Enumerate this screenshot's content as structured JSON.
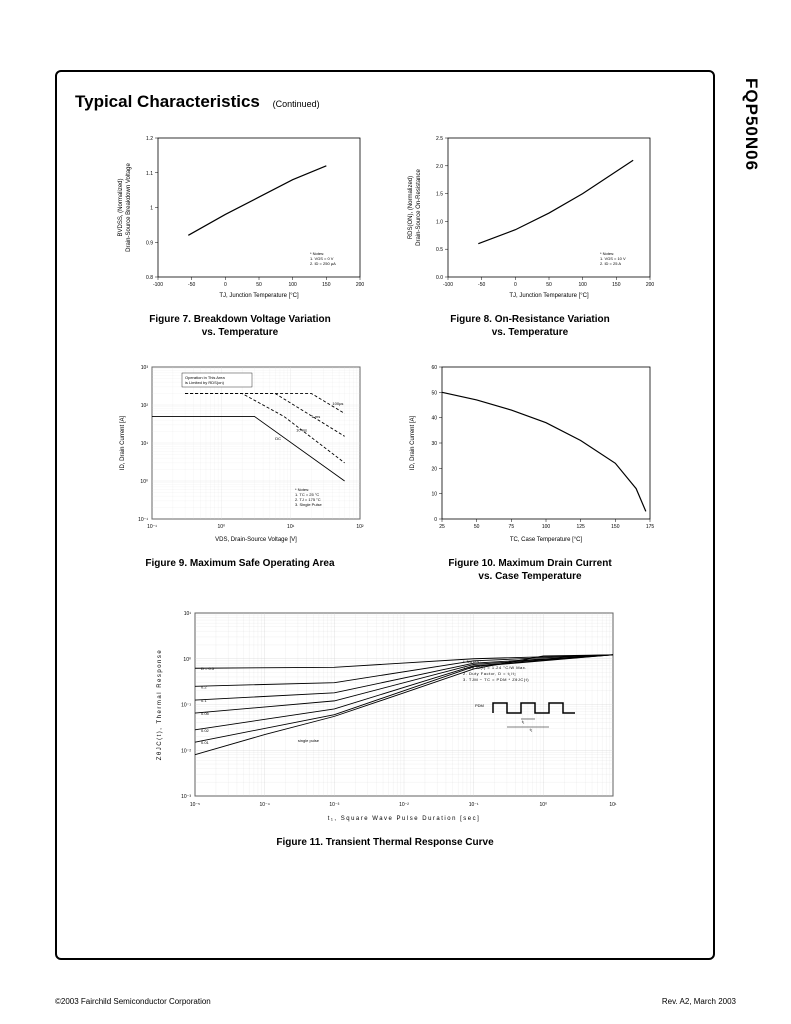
{
  "part_number": "FQP50N06",
  "section_title": "Typical Characteristics",
  "continued_label": "(Continued)",
  "footer_left": "©2003 Fairchild Semiconductor Corporation",
  "footer_right": "Rev. A2, March 2003",
  "fig7": {
    "type": "line",
    "title": "Figure 7. Breakdown Voltage Variation",
    "subtitle": "vs. Temperature",
    "xlabel": "TJ, Junction Temperature [°C]",
    "ylabel": "BVDSS, (Normalized)\nDrain-Source Breakdown Voltage",
    "xlim": [
      -100,
      200
    ],
    "ylim": [
      0.8,
      1.2
    ],
    "xticks": [
      -100,
      -50,
      0,
      50,
      100,
      150,
      200
    ],
    "yticks": [
      0.8,
      0.9,
      1.0,
      1.1,
      1.2
    ],
    "line_color": "#000000",
    "line_width": 1.2,
    "background_color": "#ffffff",
    "grid_color": "#cccccc",
    "notes": [
      "* Notes:",
      "1. VGS = 0 V",
      "2. ID = 250 µA"
    ],
    "data": [
      {
        "x": -55,
        "y": 0.92
      },
      {
        "x": 0,
        "y": 0.98
      },
      {
        "x": 50,
        "y": 1.03
      },
      {
        "x": 100,
        "y": 1.08
      },
      {
        "x": 150,
        "y": 1.12
      }
    ]
  },
  "fig8": {
    "type": "line",
    "title": "Figure 8. On-Resistance Variation",
    "subtitle": "vs. Temperature",
    "xlabel": "TJ, Junction Temperature [°C]",
    "ylabel": "RDS(ON), (Normalized)\nDrain-Source On-Resistance",
    "xlim": [
      -100,
      200
    ],
    "ylim": [
      0.0,
      2.5
    ],
    "xticks": [
      -100,
      -50,
      0,
      50,
      100,
      150,
      200
    ],
    "yticks": [
      0.0,
      0.5,
      1.0,
      1.5,
      2.0,
      2.5
    ],
    "line_color": "#000000",
    "line_width": 1.2,
    "background_color": "#ffffff",
    "grid_color": "#cccccc",
    "notes": [
      "* Notes:",
      "1. VGS = 10 V",
      "2. ID = 25 A"
    ],
    "data": [
      {
        "x": -55,
        "y": 0.6
      },
      {
        "x": 0,
        "y": 0.85
      },
      {
        "x": 50,
        "y": 1.15
      },
      {
        "x": 100,
        "y": 1.5
      },
      {
        "x": 150,
        "y": 1.9
      },
      {
        "x": 175,
        "y": 2.1
      }
    ]
  },
  "fig9": {
    "type": "line",
    "title": "Figure 9. Maximum Safe Operating Area",
    "xlabel": "VDS, Drain-Source Voltage [V]",
    "ylabel": "ID, Drain Current [A]",
    "xscale": "log",
    "yscale": "log",
    "xlim": [
      0.1,
      100
    ],
    "ylim": [
      0.1,
      1000
    ],
    "xticks": [
      0.1,
      1,
      10,
      100
    ],
    "xtick_labels": [
      "10⁻¹",
      "10⁰",
      "10¹",
      "10²"
    ],
    "yticks": [
      0.1,
      1,
      10,
      100,
      1000
    ],
    "ytick_labels": [
      "10⁻¹",
      "10⁰",
      "10¹",
      "10²",
      "10³"
    ],
    "line_color": "#000000",
    "dashed_color": "#666666",
    "background_color": "#ffffff",
    "grid_color": "#dddddd",
    "notes": [
      "* Notes:",
      "1. TC = 25 °C",
      "2. TJ = 175 °C",
      "3. Single Pulse"
    ],
    "annotation_box": "Operation in This Area\nis Limited by RDS(on)",
    "curve_labels": [
      "100µs",
      "1 ms",
      "10 ms",
      "DC"
    ],
    "curves": {
      "dc": [
        {
          "x": 0.1,
          "y": 50
        },
        {
          "x": 1,
          "y": 50
        },
        {
          "x": 3,
          "y": 50
        },
        {
          "x": 60,
          "y": 1
        }
      ],
      "10ms": [
        {
          "x": 0.3,
          "y": 200
        },
        {
          "x": 2,
          "y": 200
        },
        {
          "x": 8,
          "y": 50
        },
        {
          "x": 60,
          "y": 3
        }
      ],
      "1ms": [
        {
          "x": 0.3,
          "y": 200
        },
        {
          "x": 6,
          "y": 200
        },
        {
          "x": 60,
          "y": 15
        }
      ],
      "100us": [
        {
          "x": 0.3,
          "y": 200
        },
        {
          "x": 20,
          "y": 200
        },
        {
          "x": 60,
          "y": 60
        }
      ]
    }
  },
  "fig10": {
    "type": "line",
    "title": "Figure 10. Maximum Drain Current",
    "subtitle": "vs. Case Temperature",
    "xlabel": "TC, Case Temperature [°C]",
    "ylabel": "ID, Drain Current [A]",
    "xlim": [
      25,
      175
    ],
    "ylim": [
      0,
      60
    ],
    "xticks": [
      25,
      50,
      75,
      100,
      125,
      150,
      175
    ],
    "yticks": [
      0,
      10,
      20,
      30,
      40,
      50,
      60
    ],
    "line_color": "#000000",
    "line_width": 1.2,
    "background_color": "#ffffff",
    "grid_color": "#cccccc",
    "data": [
      {
        "x": 25,
        "y": 50
      },
      {
        "x": 50,
        "y": 47
      },
      {
        "x": 75,
        "y": 43
      },
      {
        "x": 100,
        "y": 38
      },
      {
        "x": 125,
        "y": 31
      },
      {
        "x": 150,
        "y": 22
      },
      {
        "x": 165,
        "y": 12
      },
      {
        "x": 172,
        "y": 3
      }
    ]
  },
  "fig11": {
    "type": "line",
    "title": "Figure 11. Transient Thermal Response Curve",
    "xlabel": "t₁, Square Wave Pulse Duration [sec]",
    "ylabel": "ZθJC(t), Thermal Response",
    "xscale": "log",
    "yscale": "log",
    "xlim": [
      1e-05,
      10
    ],
    "ylim": [
      0.001,
      10
    ],
    "xticks": [
      1e-05,
      0.0001,
      0.001,
      0.01,
      0.1,
      1,
      10
    ],
    "xtick_labels": [
      "10⁻⁵",
      "10⁻⁴",
      "10⁻³",
      "10⁻²",
      "10⁻¹",
      "10⁰",
      "10¹"
    ],
    "yticks": [
      0.001,
      0.01,
      0.1,
      1,
      10
    ],
    "ytick_labels": [
      "10⁻³",
      "10⁻²",
      "10⁻¹",
      "10⁰",
      "10¹"
    ],
    "line_color": "#000000",
    "background_color": "#ffffff",
    "grid_color": "#cccccc",
    "notes": [
      "* Notes:",
      "1. ZθJC(t) = 1.24 °C/W Max.",
      "2. Duty Factor, D = t₁/t₂",
      "3. TJM − TC = PDM * ZθJC(t)"
    ],
    "curve_labels": [
      "D = 0.5",
      "0.2",
      "0.1",
      "0.05",
      "0.02",
      "0.01",
      "single pulse"
    ],
    "diagram_label": "PDM",
    "diagram_t1": "t₁",
    "diagram_t2": "t₂",
    "curves": {
      "d05": [
        {
          "x": 1e-05,
          "y": 0.62
        },
        {
          "x": 0.001,
          "y": 0.65
        },
        {
          "x": 0.1,
          "y": 1.0
        },
        {
          "x": 10,
          "y": 1.22
        }
      ],
      "d02": [
        {
          "x": 1e-05,
          "y": 0.25
        },
        {
          "x": 0.001,
          "y": 0.3
        },
        {
          "x": 0.1,
          "y": 0.9
        },
        {
          "x": 10,
          "y": 1.22
        }
      ],
      "d01": [
        {
          "x": 1e-05,
          "y": 0.125
        },
        {
          "x": 0.001,
          "y": 0.18
        },
        {
          "x": 0.1,
          "y": 0.8
        },
        {
          "x": 10,
          "y": 1.22
        }
      ],
      "d005": [
        {
          "x": 1e-05,
          "y": 0.065
        },
        {
          "x": 0.001,
          "y": 0.12
        },
        {
          "x": 0.1,
          "y": 0.75
        },
        {
          "x": 10,
          "y": 1.22
        }
      ],
      "d002": [
        {
          "x": 1e-05,
          "y": 0.028
        },
        {
          "x": 0.001,
          "y": 0.08
        },
        {
          "x": 0.1,
          "y": 0.7
        },
        {
          "x": 10,
          "y": 1.22
        }
      ],
      "d001": [
        {
          "x": 1e-05,
          "y": 0.015
        },
        {
          "x": 0.001,
          "y": 0.06
        },
        {
          "x": 0.1,
          "y": 0.67
        },
        {
          "x": 10,
          "y": 1.22
        }
      ],
      "single": [
        {
          "x": 1e-05,
          "y": 0.008
        },
        {
          "x": 0.0001,
          "y": 0.022
        },
        {
          "x": 0.001,
          "y": 0.055
        },
        {
          "x": 0.01,
          "y": 0.18
        },
        {
          "x": 0.1,
          "y": 0.6
        },
        {
          "x": 1,
          "y": 1.15
        },
        {
          "x": 10,
          "y": 1.22
        }
      ]
    }
  }
}
